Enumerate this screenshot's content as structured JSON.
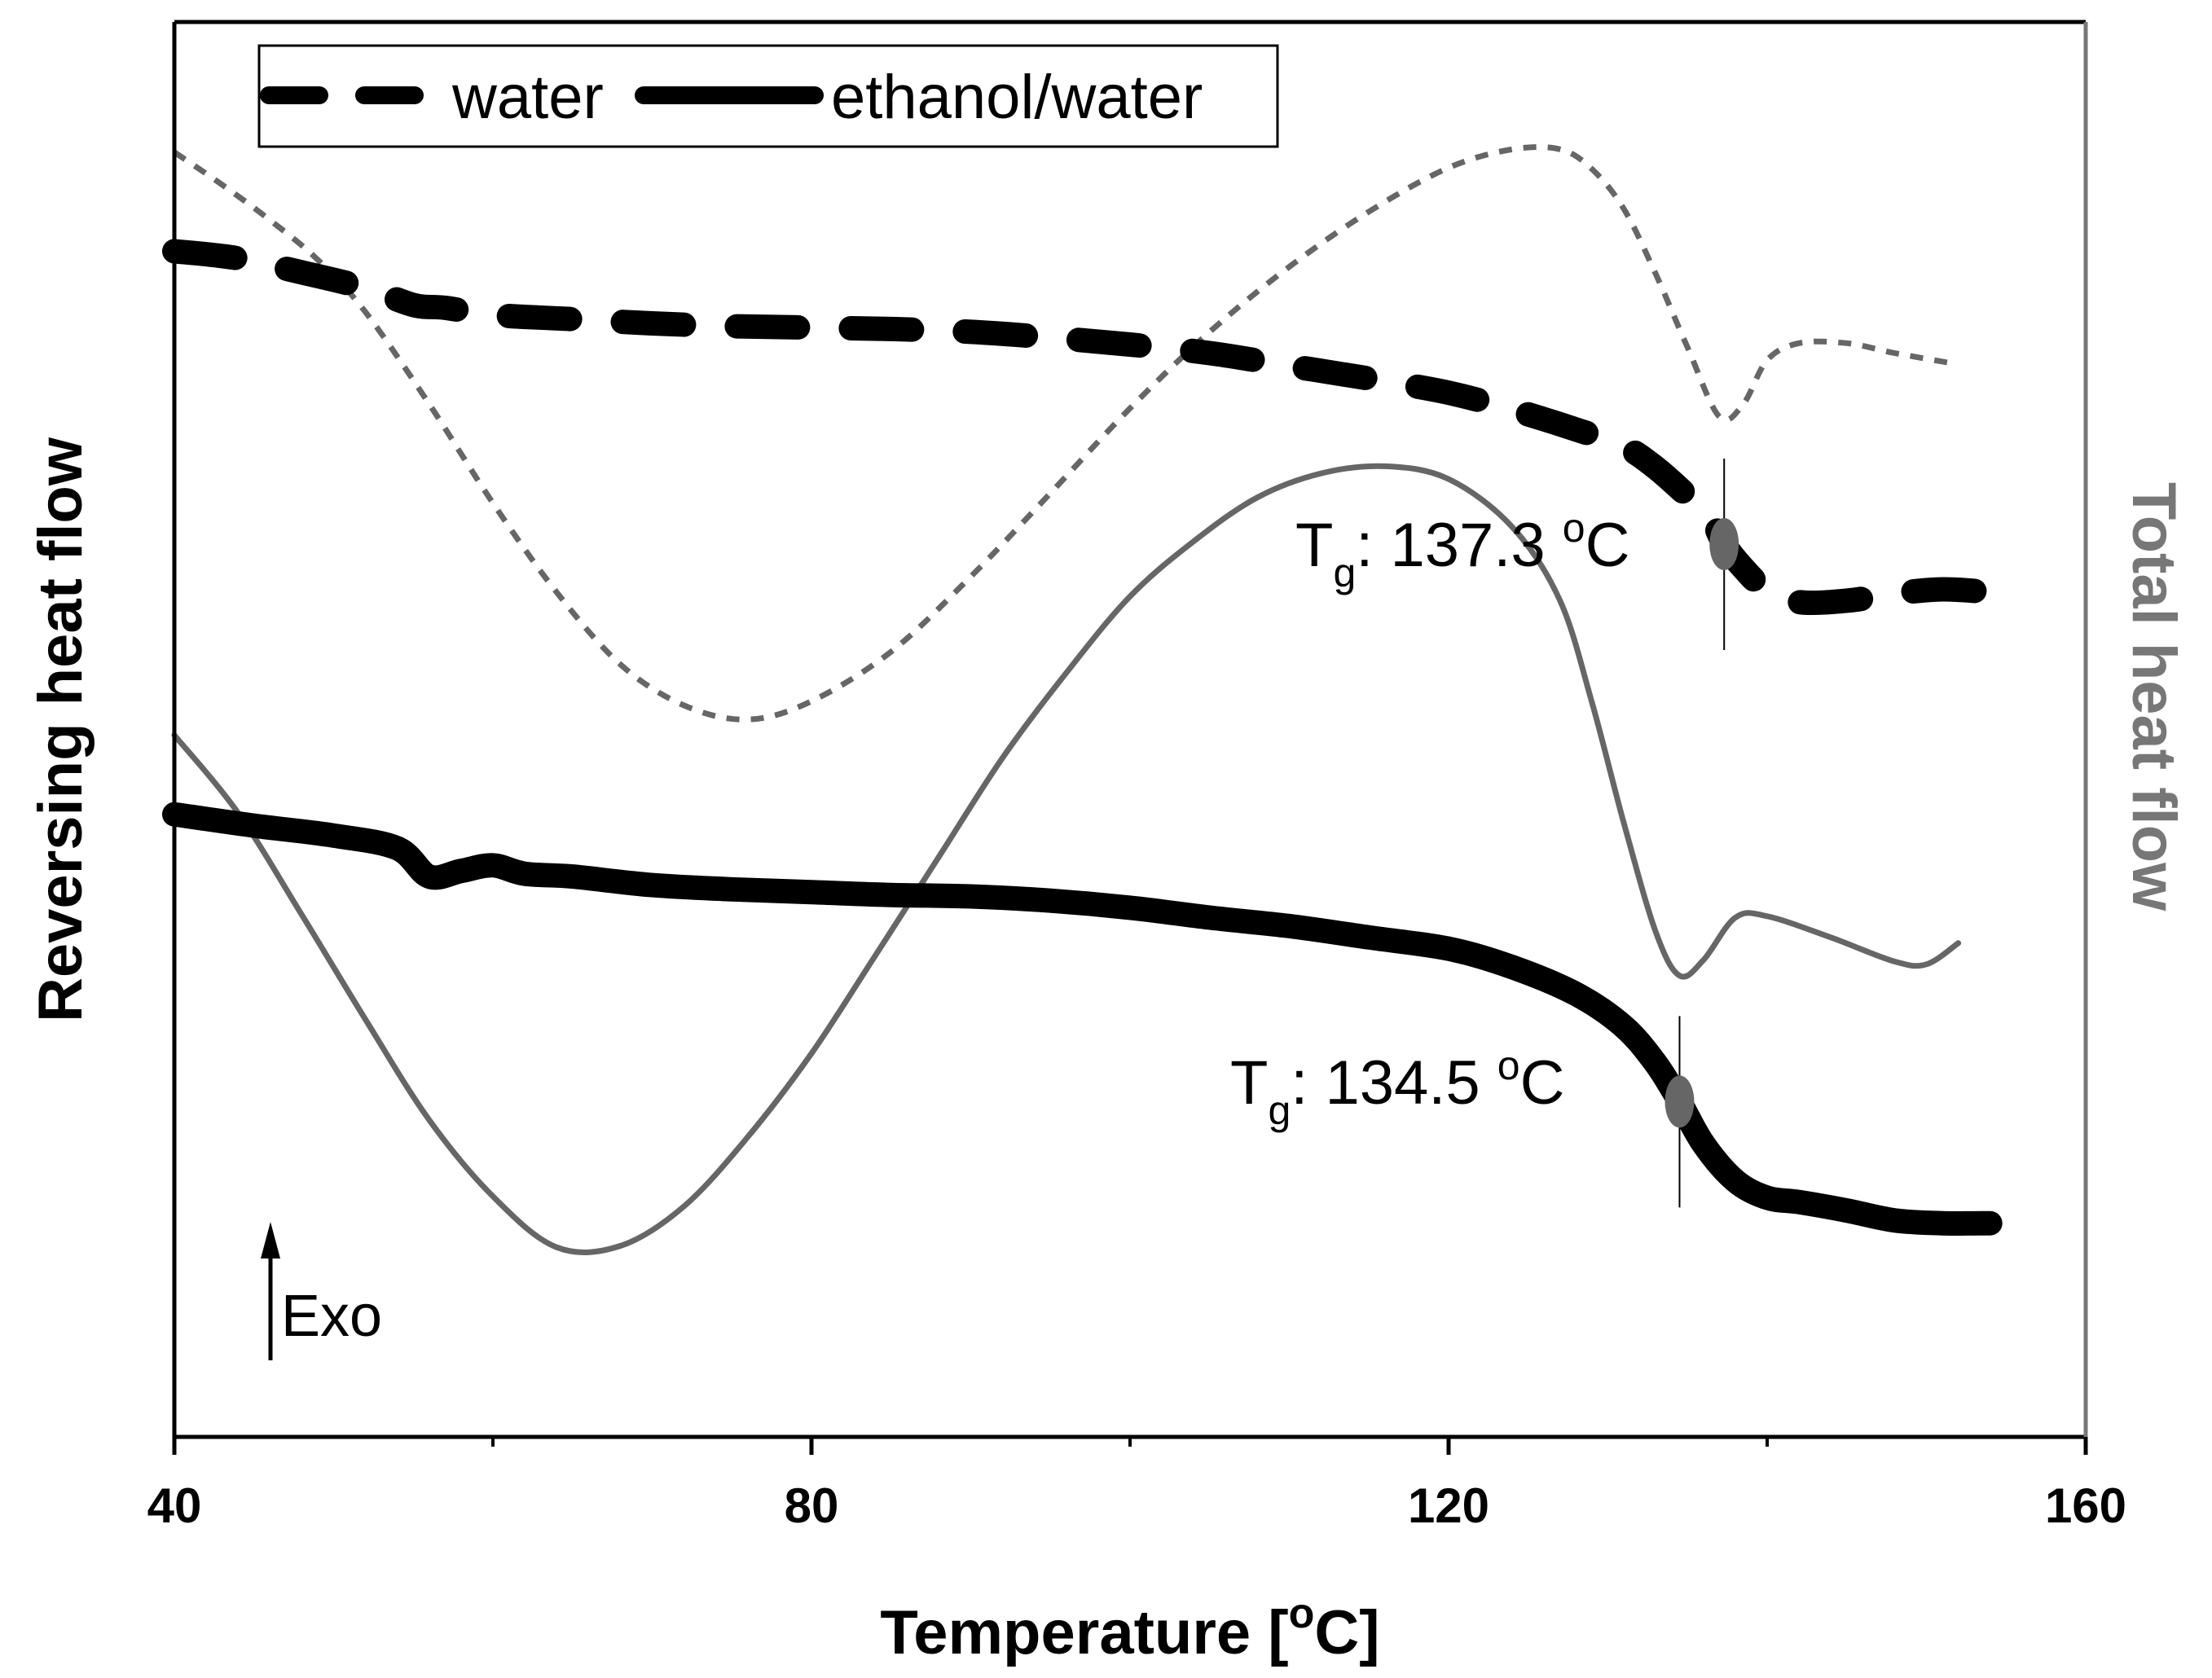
{
  "chart_data": {
    "type": "line",
    "title": "",
    "xlabel": "Temperature [",
    "xlabel_sup": "o",
    "xlabel_tail": "C]",
    "ylabel_left": "Reversing heat flow",
    "ylabel_right": "Total heat flow",
    "xlim": [
      40,
      160
    ],
    "x_ticks": [
      40,
      80,
      120,
      160
    ],
    "x_minor_ticks": [
      60,
      100,
      140
    ],
    "legend": [
      {
        "label": "water",
        "style": "dashed"
      },
      {
        "label": "ethanol/water",
        "style": "solid"
      }
    ],
    "series": [
      {
        "name": "water",
        "signal": "reversing heat flow",
        "axis": "left",
        "style": "dashed",
        "color": "#000000",
        "x": [
          40,
          44,
          48,
          52,
          55,
          57,
          60,
          65,
          70,
          75,
          80,
          85,
          90,
          95,
          100,
          105,
          110,
          115,
          120,
          124,
          128,
          131,
          133,
          135,
          136.5,
          137.3,
          138.5,
          140,
          142,
          145,
          148,
          151,
          154,
          156
        ],
        "y": [
          0.838,
          0.833,
          0.823,
          0.812,
          0.8,
          0.798,
          0.793,
          0.79,
          0.787,
          0.785,
          0.784,
          0.783,
          0.781,
          0.777,
          0.772,
          0.766,
          0.757,
          0.748,
          0.738,
          0.726,
          0.712,
          0.7,
          0.685,
          0.665,
          0.648,
          0.631,
          0.614,
          0.598,
          0.59,
          0.591,
          0.596,
          0.599,
          0.597,
          0.595
        ]
      },
      {
        "name": "water",
        "signal": "total heat flow",
        "axis": "right",
        "style": "dotted",
        "color": "#666666",
        "x": [
          40,
          43,
          46,
          49,
          52,
          56,
          60,
          64,
          68,
          72,
          76,
          80,
          85,
          90,
          95,
          100,
          105,
          110,
          115,
          120,
          124,
          127,
          129,
          131,
          133,
          135,
          137,
          138.5,
          140,
          142,
          145,
          148,
          152
        ],
        "y": [
          0.908,
          0.885,
          0.86,
          0.832,
          0.795,
          0.73,
          0.66,
          0.597,
          0.546,
          0.517,
          0.507,
          0.52,
          0.555,
          0.608,
          0.667,
          0.727,
          0.781,
          0.827,
          0.866,
          0.897,
          0.91,
          0.91,
          0.896,
          0.868,
          0.822,
          0.77,
          0.721,
          0.73,
          0.761,
          0.773,
          0.773,
          0.766,
          0.758
        ]
      },
      {
        "name": "ethanol/water",
        "signal": "reversing heat flow",
        "axis": "left",
        "style": "solid",
        "color": "#000000",
        "x": [
          40,
          45,
          50,
          54,
          56,
          58,
          60,
          62,
          65,
          70,
          75,
          80,
          85,
          90,
          95,
          100,
          105,
          110,
          115,
          120,
          124,
          128,
          131,
          133,
          134.5,
          136,
          138,
          140,
          142,
          145,
          148,
          151,
          154
        ],
        "y": [
          0.44,
          0.432,
          0.425,
          0.416,
          0.396,
          0.4,
          0.404,
          0.398,
          0.396,
          0.39,
          0.387,
          0.385,
          0.383,
          0.382,
          0.379,
          0.374,
          0.367,
          0.361,
          0.353,
          0.345,
          0.332,
          0.313,
          0.29,
          0.264,
          0.237,
          0.207,
          0.181,
          0.169,
          0.166,
          0.16,
          0.153,
          0.151,
          0.151
        ]
      },
      {
        "name": "ethanol/water",
        "signal": "total heat flow",
        "axis": "right",
        "style": "solid",
        "color": "#666666",
        "x": [
          40,
          44,
          48,
          52,
          56,
          60,
          64,
          68,
          72,
          76,
          80,
          84,
          88,
          92,
          96,
          100,
          104,
          108,
          112,
          116,
          120,
          124,
          127,
          129,
          131,
          133,
          134.5,
          136,
          138,
          140,
          144,
          148,
          150,
          152
        ],
        "y": [
          0.496,
          0.441,
          0.369,
          0.295,
          0.224,
          0.17,
          0.134,
          0.135,
          0.163,
          0.212,
          0.271,
          0.34,
          0.41,
          0.48,
          0.54,
          0.594,
          0.633,
          0.664,
          0.681,
          0.686,
          0.677,
          0.643,
          0.591,
          0.519,
          0.434,
          0.357,
          0.326,
          0.337,
          0.367,
          0.368,
          0.353,
          0.336,
          0.334,
          0.349
        ]
      }
    ],
    "annotations": [
      {
        "label": "T",
        "subscript": "g",
        "tail": ": 137.3 ",
        "sup": "o",
        "unit": "C",
        "x": 137.3,
        "series": "water"
      },
      {
        "label": "T",
        "subscript": "g",
        "tail": ": 134.5 ",
        "sup": "o",
        "unit": "C",
        "x": 134.5,
        "series": "ethanol/water"
      }
    ],
    "exo_label": "Exo",
    "exo_direction": "up",
    "colors": {
      "reversing": "#000000",
      "total": "#666666",
      "marker": "#666666",
      "right_axis": "#777777"
    }
  }
}
